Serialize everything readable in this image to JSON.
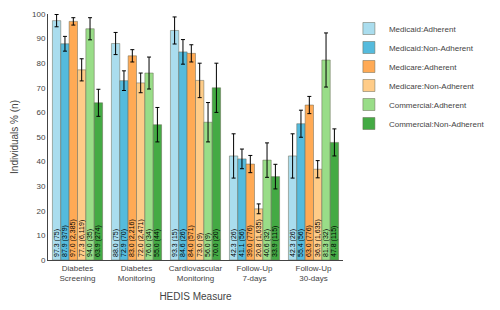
{
  "chart_data": {
    "type": "bar",
    "categories": [
      "Diabetes\nScreening",
      "Diabetes\nMonitoring",
      "Cardiovascular\nMonitoring",
      "Follow-Up\n7-days",
      "Follow-Up\n30-days"
    ],
    "series": [
      {
        "name": "Medicaid:Adherent",
        "color": "#aaddee",
        "values": [
          97.3,
          88.0,
          93.3,
          42.3,
          42.3
        ],
        "errors": [
          2.5,
          4.5,
          5.5,
          9.0,
          9.0
        ],
        "value_labels": [
          "97.3 (75)",
          "88.0 (75)",
          "93.3 (15)",
          "42.3 (26)",
          "42.3 (26)"
        ]
      },
      {
        "name": "Medicaid:Non-Adherent",
        "color": "#55bbdd",
        "values": [
          87.9,
          72.9,
          84.6,
          41.1,
          55.4
        ],
        "errors": [
          3.0,
          4.0,
          5.0,
          4.0,
          5.5
        ],
        "value_labels": [
          "87.9 (379)",
          "72.9 (70)",
          "84.6 (26)",
          "41.1 (56)",
          "55.4 (56)"
        ]
      },
      {
        "name": "Medicare:Adherent",
        "color": "#ffaa55",
        "values": [
          97.0,
          83.0,
          84.0,
          39.0,
          63.0
        ],
        "errors": [
          1.5,
          2.5,
          3.5,
          3.5,
          3.5
        ],
        "value_labels": [
          "97.0 (2,385)",
          "83.0 (2,216)",
          "84.0 (571)",
          "39.0 (776)",
          "63.0 (776)"
        ]
      },
      {
        "name": "Medicare:Non-Adherent",
        "color": "#ffcc88",
        "values": [
          77.3,
          72.0,
          73.0,
          20.8,
          36.9
        ],
        "errors": [
          4.5,
          4.0,
          7.0,
          2.0,
          3.5
        ],
        "value_labels": [
          "77.3 (6,119)",
          "72.0 (2,471)",
          "73.0 (9)",
          "20.8 (1,635)",
          "36.9 (1,635)"
        ]
      },
      {
        "name": "Commercial:Adherent",
        "color": "#99dd88",
        "values": [
          94.0,
          76.0,
          56.0,
          40.6,
          81.3
        ],
        "errors": [
          4.5,
          6.5,
          8.0,
          7.0,
          11.0
        ],
        "value_labels": [
          "94.0 (35)",
          "76.0 (34)",
          "56.0 (9)",
          "40.6 (32)",
          "81.3 (32)"
        ]
      },
      {
        "name": "Commercial:Non-Adherent",
        "color": "#44aa44",
        "values": [
          63.9,
          55.0,
          70.0,
          33.9,
          47.8
        ],
        "errors": [
          5.5,
          7.0,
          10.0,
          5.0,
          5.5
        ],
        "value_labels": [
          "63.9 (274)",
          "55.0 (44)",
          "70.0 (20)",
          "33.9 (115)",
          "47.8 (115)"
        ]
      }
    ],
    "ylabel": "Individuals % (n)",
    "xlabel": "HEDIS Measure",
    "ylim": [
      0,
      100
    ],
    "yticks": [
      0,
      10,
      20,
      30,
      40,
      50,
      60,
      70,
      80,
      90,
      100
    ],
    "data_labels": true,
    "grid": false,
    "legend": "upper right"
  }
}
